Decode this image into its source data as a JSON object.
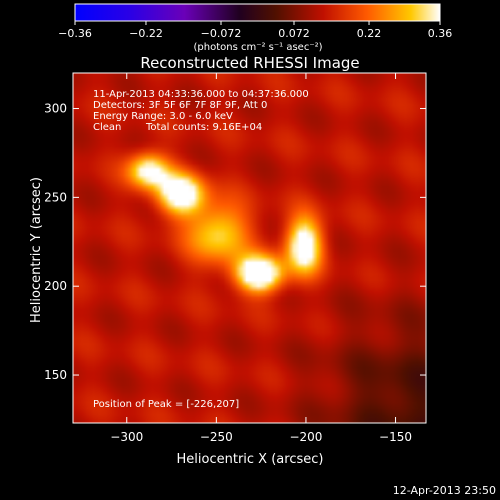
{
  "chart_data": {
    "type": "heatmap",
    "title": "Reconstructed RHESSI Image",
    "xlabel": "Heliocentric X (arcsec)",
    "ylabel": "Heliocentric Y (arcsec)",
    "xlim": [
      -330,
      -133
    ],
    "ylim": [
      123,
      320
    ],
    "x_ticks": [
      -300,
      -250,
      -200,
      -150
    ],
    "y_ticks": [
      150,
      200,
      250,
      300
    ],
    "colorbar": {
      "range": [
        -0.36,
        0.36
      ],
      "ticks": [
        "-0.36",
        "-0.22",
        "-0.072",
        "0.072",
        "0.22",
        "0.36"
      ],
      "unit_label": "(photons cm⁻² s⁻¹ asec⁻²)"
    },
    "annotations": {
      "time_range": "11-Apr-2013 04:33:36.000 to 04:37:36.000",
      "detectors": "Detectors: 3F 5F 6F 7F 8F 9F, Att 0",
      "energy": "Energy Range: 3.0 - 6.0 keV",
      "clean_label": "Clean",
      "total_counts": "Total counts: 9.16E+04",
      "peak": "Position of Peak = [-226,207]"
    },
    "peak": [
      -226,
      207
    ],
    "sources": [
      {
        "x": -226,
        "y": 207,
        "amp": 0.36,
        "sx": 9,
        "sy": 7
      },
      {
        "x": -201,
        "y": 223,
        "amp": 0.3,
        "sx": 7,
        "sy": 11
      },
      {
        "x": -270,
        "y": 252,
        "amp": 0.31,
        "sx": 9,
        "sy": 8
      },
      {
        "x": -288,
        "y": 265,
        "amp": 0.26,
        "sx": 8,
        "sy": 7
      },
      {
        "x": -249,
        "y": 230,
        "amp": 0.2,
        "sx": 12,
        "sy": 12
      }
    ],
    "background": 0.13
  },
  "footer": {
    "timestamp": "12-Apr-2013 23:50"
  }
}
